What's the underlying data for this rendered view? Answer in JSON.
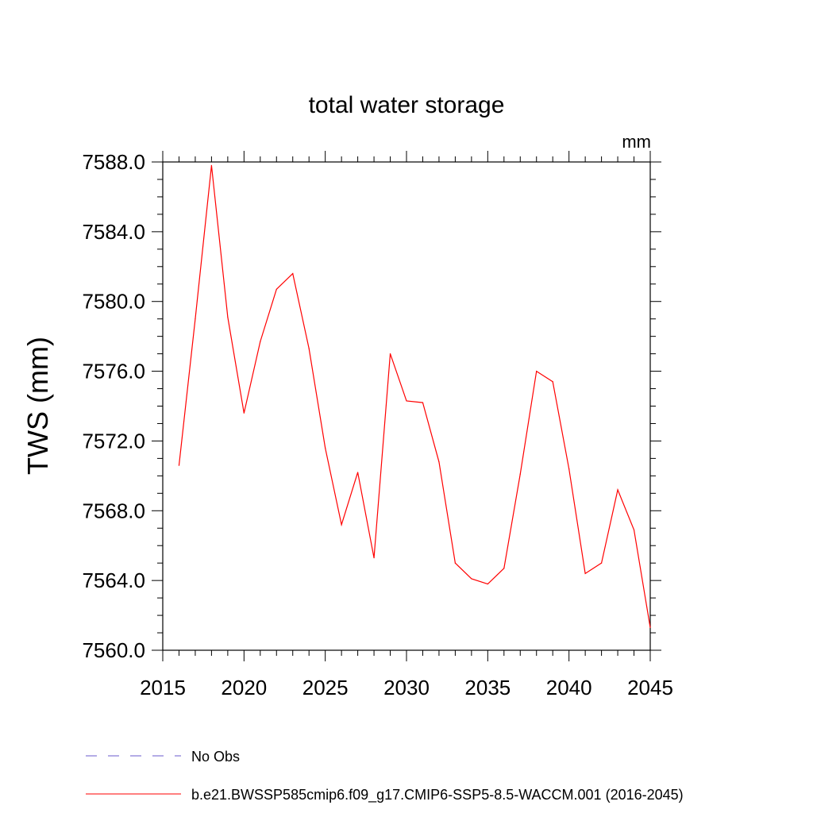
{
  "chart_data": {
    "type": "line",
    "title": "total water storage",
    "units_label": "mm",
    "ylabel": "TWS  (mm)",
    "xlabel": "",
    "xlim": [
      2015,
      2045
    ],
    "ylim": [
      7560.0,
      7588.0
    ],
    "x_ticks": [
      "2015",
      "2020",
      "2025",
      "2030",
      "2035",
      "2040",
      "2045"
    ],
    "y_ticks": [
      "7560.0",
      "7564.0",
      "7568.0",
      "7572.0",
      "7576.0",
      "7580.0",
      "7584.0",
      "7588.0"
    ],
    "grid": false,
    "legend_placement": "bottom",
    "legend": [
      {
        "label": "No Obs",
        "style": "dashed",
        "color": "#6a5acd"
      },
      {
        "label": "b.e21.BWSSP585cmip6.f09_g17.CMIP6-SSP5-8.5-WACCM.001 (2016-2045)",
        "style": "solid",
        "color": "#ff0000"
      }
    ],
    "series": [
      {
        "name": "b.e21.BWSSP585cmip6.f09_g17.CMIP6-SSP5-8.5-WACCM.001 (2016-2045)",
        "color": "#ff0000",
        "x": [
          2016,
          2017,
          2018,
          2019,
          2020,
          2021,
          2022,
          2023,
          2024,
          2025,
          2026,
          2027,
          2028,
          2029,
          2030,
          2031,
          2032,
          2033,
          2034,
          2035,
          2036,
          2037,
          2038,
          2039,
          2040,
          2041,
          2042,
          2043,
          2044,
          2045
        ],
        "values": [
          7570.6,
          7579.0,
          7587.8,
          7579.1,
          7573.6,
          7577.7,
          7580.7,
          7581.6,
          7577.3,
          7571.6,
          7567.2,
          7570.2,
          7565.3,
          7577.0,
          7574.3,
          7574.2,
          7570.8,
          7565.0,
          7564.1,
          7563.8,
          7564.7,
          7570.1,
          7576.0,
          7575.4,
          7570.4,
          7564.4,
          7565.0,
          7569.2,
          7566.9,
          7561.3
        ]
      }
    ]
  }
}
